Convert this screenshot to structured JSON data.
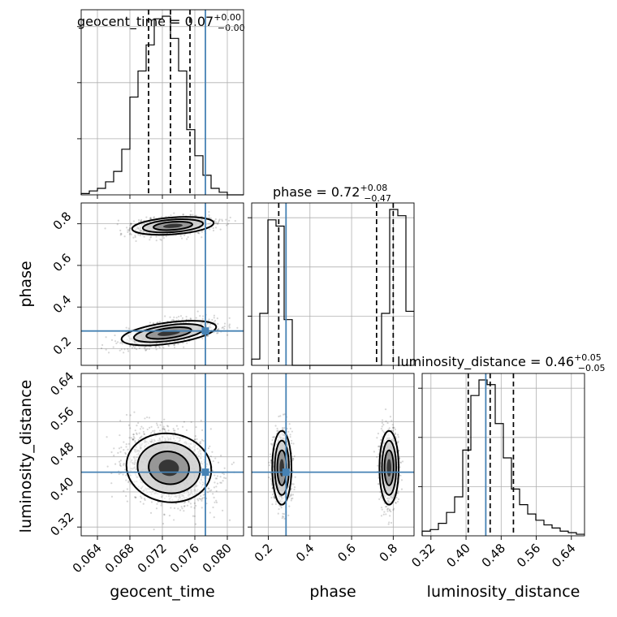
{
  "chart_data": {
    "type": "corner",
    "parameters": [
      "geocent_time",
      "phase",
      "luminosity_distance"
    ],
    "truth": {
      "geocent_time": 0.0773,
      "phase": 0.285,
      "luminosity_distance": 0.445
    },
    "titles": [
      {
        "name": "geocent_time",
        "value": "0.07",
        "plus": "+0.00",
        "minus": "−0.00"
      },
      {
        "name": "phase",
        "value": "0.72",
        "plus": "+0.08",
        "minus": "−0.47"
      },
      {
        "name": "luminosity_distance",
        "value": "0.46",
        "plus": "+0.05",
        "minus": "−0.05"
      }
    ],
    "axes": {
      "geocent_time": {
        "range": [
          0.062,
          0.082
        ],
        "ticks": [
          "0.064",
          "0.068",
          "0.072",
          "0.076",
          "0.080"
        ],
        "label": "geocent_time"
      },
      "phase": {
        "range": [
          0.12,
          0.9
        ],
        "ticks": [
          "0.2",
          "0.4",
          "0.6",
          "0.8"
        ],
        "label": "phase"
      },
      "luminosity_distance": {
        "range": [
          0.3,
          0.67
        ],
        "ticks": [
          "0.32",
          "0.40",
          "0.48",
          "0.56",
          "0.64"
        ],
        "label": "luminosity_distance"
      }
    },
    "histograms": {
      "geocent_time": {
        "edges_start": 0.062,
        "bin_width": 0.001,
        "counts": [
          1,
          3,
          5,
          10,
          18,
          35,
          75,
          95,
          115,
          135,
          137,
          120,
          95,
          50,
          30,
          15,
          5,
          2,
          0,
          0
        ],
        "quantiles": [
          0.0703,
          0.073,
          0.0754
        ]
      },
      "phase": {
        "edges_start": 0.12,
        "bin_width": 0.039,
        "counts": [
          3,
          25,
          70,
          67,
          22,
          0,
          0,
          0,
          0,
          0,
          0,
          0,
          0,
          0,
          0,
          0,
          25,
          75,
          72,
          26
        ],
        "quantiles": [
          0.25,
          0.72,
          0.8
        ]
      },
      "luminosity_distance": {
        "edges_start": 0.3,
        "bin_width": 0.0185,
        "counts": [
          3,
          4,
          8,
          15,
          25,
          55,
          90,
          100,
          97,
          72,
          50,
          30,
          20,
          14,
          10,
          7,
          5,
          3,
          2,
          1
        ],
        "quantiles": [
          0.405,
          0.455,
          0.508
        ]
      }
    },
    "grid": true
  }
}
